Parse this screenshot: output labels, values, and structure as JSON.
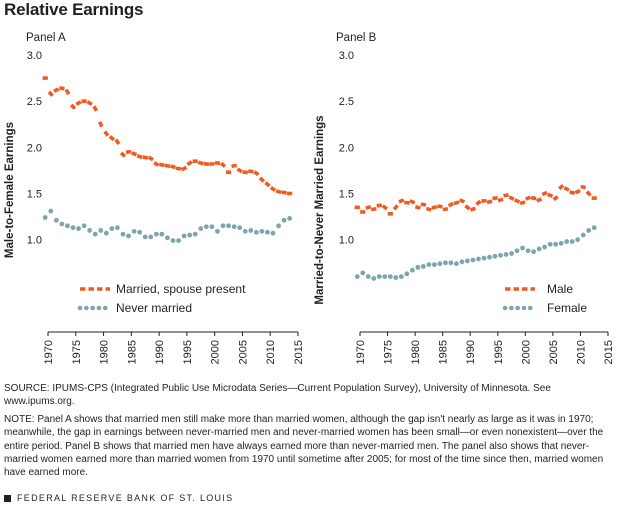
{
  "title": "Relative Earnings",
  "colors": {
    "orange": "#f15a22",
    "teal": "#7fa4aa",
    "axis": "#231f20",
    "text": "#231f20"
  },
  "footer": {
    "source": "SOURCE: IPUMS-CPS (Integrated Public Use Microdata Series—Current Population Survey), University of Minnesota. See www.ipums.org.",
    "note": "NOTE: Panel A shows that married men still make more than married women, although the gap isn't nearly as large as it was in 1970; meanwhile, the gap in earnings between never-married men and never-married women has been small—or even nonexistent—over the entire period. Panel B shows that married men have always earned more than never-married men. The panel also shows that never-married women earned more than married women from 1970 until sometime after 2005; for most of the time since then, married women have earned more.",
    "brand": "FEDERAL RESERVE BANK OF ST. LOUIS"
  },
  "chart_data": [
    {
      "type": "line",
      "panel_label": "Panel A",
      "ylabel": "Male-to-Female Earnings",
      "xlabel": "",
      "xlim": [
        1970,
        2015
      ],
      "ylim": [
        0,
        3.0
      ],
      "xticks": [
        1970,
        1975,
        1980,
        1985,
        1990,
        1995,
        2000,
        2005,
        2010,
        2015
      ],
      "yticks": [
        "1.0",
        "1.5",
        "2.0",
        "2.5",
        "3.0"
      ],
      "x": [
        1969.5,
        1970.5,
        1971.5,
        1972.5,
        1973.5,
        1974.5,
        1975.5,
        1976.5,
        1977.5,
        1978.5,
        1979.5,
        1980.5,
        1981.5,
        1982.5,
        1983.5,
        1984.5,
        1985.5,
        1986.5,
        1987.5,
        1988.5,
        1989.5,
        1990.5,
        1991.5,
        1992.5,
        1993.5,
        1994.5,
        1995.5,
        1996.5,
        1997.5,
        1998.5,
        1999.5,
        2000.5,
        2001.5,
        2002.5,
        2003.5,
        2004.5,
        2005.5,
        2006.5,
        2007.5,
        2008.5,
        2009.5,
        2010.5,
        2011.5,
        2012.5,
        2013.5
      ],
      "series": [
        {
          "name": "Married, spouse present",
          "style": "dash",
          "color": "#f15a22",
          "values": [
            2.75,
            2.58,
            2.62,
            2.64,
            2.6,
            2.44,
            2.48,
            2.5,
            2.48,
            2.42,
            2.25,
            2.15,
            2.1,
            2.06,
            1.92,
            1.95,
            1.93,
            1.9,
            1.89,
            1.88,
            1.82,
            1.81,
            1.8,
            1.79,
            1.77,
            1.77,
            1.83,
            1.85,
            1.83,
            1.82,
            1.82,
            1.83,
            1.81,
            1.73,
            1.8,
            1.75,
            1.73,
            1.74,
            1.72,
            1.65,
            1.6,
            1.55,
            1.52,
            1.51,
            1.5
          ]
        },
        {
          "name": "Never married",
          "style": "dot",
          "color": "#7fa4aa",
          "values": [
            1.24,
            1.31,
            1.21,
            1.17,
            1.15,
            1.13,
            1.12,
            1.15,
            1.1,
            1.06,
            1.1,
            1.07,
            1.12,
            1.13,
            1.06,
            1.04,
            1.09,
            1.08,
            1.03,
            1.03,
            1.06,
            1.06,
            1.02,
            0.99,
            0.99,
            1.04,
            1.05,
            1.06,
            1.12,
            1.14,
            1.14,
            1.09,
            1.15,
            1.15,
            1.14,
            1.13,
            1.09,
            1.1,
            1.08,
            1.09,
            1.08,
            1.07,
            1.15,
            1.21,
            1.23
          ]
        }
      ],
      "legend": {
        "placement": "lower-left",
        "items": [
          "Married, spouse present",
          "Never married"
        ]
      }
    },
    {
      "type": "line",
      "panel_label": "Panel B",
      "ylabel": "Married-to-Never Married Earnings",
      "xlabel": "",
      "xlim": [
        1970,
        2015
      ],
      "ylim": [
        0,
        3.0
      ],
      "xticks": [
        1970,
        1975,
        1980,
        1985,
        1990,
        1995,
        2000,
        2005,
        2010,
        2015
      ],
      "yticks": [
        "1.0",
        "1.5",
        "2.0",
        "2.5",
        "3.0"
      ],
      "x": [
        1969.5,
        1970.5,
        1971.5,
        1972.5,
        1973.5,
        1974.5,
        1975.5,
        1976.5,
        1977.5,
        1978.5,
        1979.5,
        1980.5,
        1981.5,
        1982.5,
        1983.5,
        1984.5,
        1985.5,
        1986.5,
        1987.5,
        1988.5,
        1989.5,
        1990.5,
        1991.5,
        1992.5,
        1993.5,
        1994.5,
        1995.5,
        1996.5,
        1997.5,
        1998.5,
        1999.5,
        2000.5,
        2001.5,
        2002.5,
        2003.5,
        2004.5,
        2005.5,
        2006.5,
        2007.5,
        2008.5,
        2009.5,
        2010.5,
        2011.5,
        2012.5
      ],
      "series": [
        {
          "name": "Male",
          "style": "dash",
          "color": "#f15a22",
          "values": [
            1.35,
            1.3,
            1.35,
            1.33,
            1.37,
            1.35,
            1.28,
            1.35,
            1.42,
            1.4,
            1.41,
            1.35,
            1.38,
            1.33,
            1.35,
            1.36,
            1.33,
            1.38,
            1.4,
            1.42,
            1.35,
            1.33,
            1.4,
            1.42,
            1.41,
            1.45,
            1.43,
            1.48,
            1.45,
            1.42,
            1.4,
            1.45,
            1.45,
            1.43,
            1.5,
            1.48,
            1.45,
            1.57,
            1.55,
            1.51,
            1.52,
            1.57,
            1.5,
            1.45
          ]
        },
        {
          "name": "Female",
          "style": "dot",
          "color": "#7fa4aa",
          "values": [
            0.6,
            0.64,
            0.6,
            0.58,
            0.6,
            0.6,
            0.6,
            0.59,
            0.6,
            0.63,
            0.67,
            0.7,
            0.71,
            0.73,
            0.73,
            0.74,
            0.75,
            0.75,
            0.74,
            0.76,
            0.77,
            0.78,
            0.79,
            0.8,
            0.81,
            0.82,
            0.83,
            0.84,
            0.85,
            0.88,
            0.91,
            0.88,
            0.87,
            0.9,
            0.92,
            0.95,
            0.95,
            0.96,
            0.98,
            0.98,
            1.0,
            1.05,
            1.1,
            1.13
          ]
        }
      ],
      "legend": {
        "placement": "lower-right",
        "items": [
          "Male",
          "Female"
        ]
      }
    }
  ]
}
